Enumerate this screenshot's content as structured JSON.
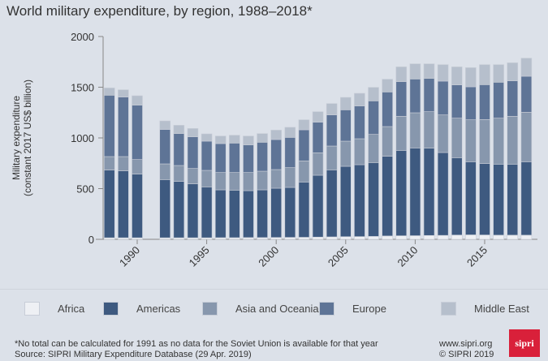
{
  "chart_data": {
    "type": "bar",
    "stacked": true,
    "title": "World military expenditure, by region, 1988–2018*",
    "ylabel": "Military expenditure\n(constant 2017 US$ billion)",
    "xlabel": "",
    "ylim": [
      0,
      2000
    ],
    "yticks": [
      0,
      500,
      1000,
      1500,
      2000
    ],
    "xticks": [
      1990,
      1995,
      2000,
      2005,
      2010,
      2015
    ],
    "grid": false,
    "legend_position": "bottom",
    "categories": [
      1988,
      1989,
      1990,
      1991,
      1992,
      1993,
      1994,
      1995,
      1996,
      1997,
      1998,
      1999,
      2000,
      2001,
      2002,
      2003,
      2004,
      2005,
      2006,
      2007,
      2008,
      2009,
      2010,
      2011,
      2012,
      2013,
      2014,
      2015,
      2016,
      2017,
      2018
    ],
    "series": [
      {
        "name": "Africa",
        "color": "#eef0f4",
        "values": [
          15,
          15,
          15,
          null,
          15,
          15,
          15,
          15,
          16,
          16,
          17,
          17,
          18,
          19,
          20,
          22,
          24,
          26,
          27,
          29,
          33,
          35,
          36,
          38,
          39,
          42,
          44,
          43,
          41,
          41,
          41
        ]
      },
      {
        "name": "Americas",
        "color": "#3e5a80",
        "values": [
          668,
          660,
          628,
          null,
          574,
          556,
          532,
          502,
          472,
          469,
          463,
          471,
          486,
          493,
          545,
          610,
          661,
          694,
          709,
          728,
          786,
          842,
          865,
          861,
          817,
          763,
          721,
          704,
          700,
          700,
          724
        ]
      },
      {
        "name": "Asia and Oceania",
        "color": "#8797ad",
        "values": [
          133,
          141,
          144,
          null,
          155,
          157,
          152,
          163,
          171,
          174,
          179,
          184,
          184,
          195,
          208,
          221,
          235,
          248,
          256,
          278,
          293,
          336,
          347,
          360,
          371,
          390,
          414,
          434,
          454,
          472,
          488
        ]
      },
      {
        "name": "Europe",
        "color": "#5e7496",
        "values": [
          605,
          587,
          536,
          null,
          339,
          315,
          312,
          288,
          285,
          290,
          272,
          285,
          296,
          298,
          307,
          302,
          307,
          309,
          323,
          330,
          341,
          342,
          333,
          328,
          333,
          328,
          325,
          344,
          354,
          350,
          355
        ]
      },
      {
        "name": "Middle East",
        "color": "#b6bfcc",
        "values": [
          72,
          72,
          93,
          null,
          85,
          82,
          82,
          72,
          75,
          78,
          88,
          86,
          93,
          100,
          99,
          104,
          112,
          123,
          125,
          134,
          126,
          146,
          150,
          144,
          163,
          178,
          189,
          198,
          174,
          178,
          179
        ]
      }
    ]
  },
  "footer": {
    "note": "*No total can be calculated for 1991 as no data for the Soviet Union is available for that year",
    "source": "Source: SIPRI Military Expenditure Database (29 Apr. 2019)",
    "website": "www.sipri.org",
    "copyright": "© SIPRI 2019",
    "logo_text": "sipri"
  }
}
